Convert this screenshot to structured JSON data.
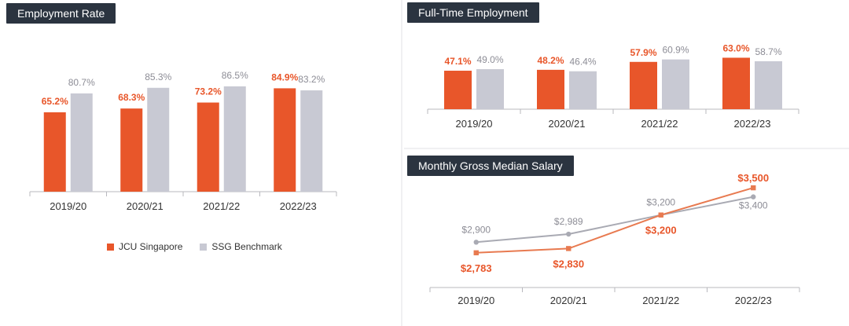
{
  "colors": {
    "primary": "#e8562a",
    "benchmark": "#c8c9d3",
    "title_bg": "#2b3440",
    "value_grey": "#8d8d96",
    "axis": "#b8b8be"
  },
  "legend": [
    {
      "label": "JCU Singapore",
      "color": "#e8562a"
    },
    {
      "label": "SSG Benchmark",
      "color": "#c8c9d3"
    }
  ],
  "chart_data": [
    {
      "type": "bar",
      "title": "Employment Rate",
      "categories": [
        "2019/20",
        "2020/21",
        "2021/22",
        "2022/23"
      ],
      "series": [
        {
          "name": "JCU Singapore",
          "values": [
            65.2,
            68.3,
            73.2,
            84.9
          ]
        },
        {
          "name": "SSG Benchmark",
          "values": [
            80.7,
            85.3,
            86.5,
            83.2
          ]
        }
      ],
      "unit": "%",
      "data_labels": {
        "JCU Singapore": [
          "65.2%",
          "68.3%",
          "73.2%",
          "84.9%"
        ],
        "SSG Benchmark": [
          "80.7%",
          "85.3%",
          "86.5%",
          "83.2%"
        ]
      },
      "ylim": [
        0,
        100
      ],
      "legend_position": "bottom"
    },
    {
      "type": "bar",
      "title": "Full-Time Employment",
      "categories": [
        "2019/20",
        "2020/21",
        "2021/22",
        "2022/23"
      ],
      "series": [
        {
          "name": "JCU Singapore",
          "values": [
            47.1,
            48.2,
            57.9,
            63.0
          ]
        },
        {
          "name": "SSG Benchmark",
          "values": [
            49.0,
            46.4,
            60.9,
            58.7
          ]
        }
      ],
      "unit": "%",
      "data_labels": {
        "JCU Singapore": [
          "47.1%",
          "48.2%",
          "57.9%",
          "63.0%"
        ],
        "SSG Benchmark": [
          "49.0%",
          "46.4%",
          "60.9%",
          "58.7%"
        ]
      },
      "ylim": [
        0,
        100
      ]
    },
    {
      "type": "line",
      "title": "Monthly Gross Median Salary",
      "categories": [
        "2019/20",
        "2020/21",
        "2021/22",
        "2022/23"
      ],
      "series": [
        {
          "name": "JCU Singapore",
          "values": [
            2783,
            2830,
            3200,
            3500
          ]
        },
        {
          "name": "SSG Benchmark",
          "values": [
            2900,
            2989,
            3200,
            3400
          ]
        }
      ],
      "data_labels": {
        "JCU Singapore": [
          "$2,783",
          "$2,830",
          "$3,200",
          "$3,500"
        ],
        "SSG Benchmark": [
          "$2,900",
          "$2,989",
          "$3,200",
          "$3,400"
        ]
      },
      "ylim": [
        2400,
        3700
      ]
    }
  ]
}
